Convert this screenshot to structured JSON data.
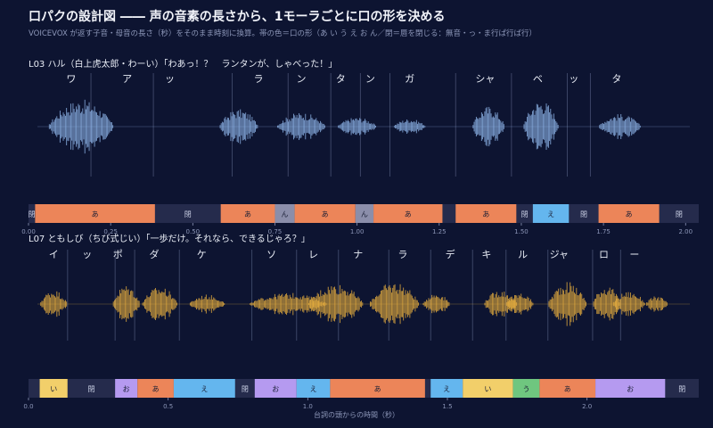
{
  "title": "口パクの設計図 ―― 声の音素の長さから、1モーラごとに口の形を決める",
  "subtitle": "VOICEVOX が返す子音・母音の長さ（秒）をそのまま時刻に換算。帯の色＝口の形（あ い う え お ん／閉＝唇を閉じる：無音・っ・ま行ぱ行ば行）",
  "x_axis_label": "台詞の頭からの時間（秒）",
  "colors": {
    "background": "#0d1431",
    "wave_line1": "#8fb6ea",
    "wave_line2": "#e9b03f",
    "a": "#ec8559",
    "i": "#f2cf6a",
    "u": "#6fc67f",
    "e": "#64b6ee",
    "o": "#b59af0",
    "n": "#8b8eaa",
    "closed": "#252b4c"
  },
  "chart_data": [
    {
      "type": "timeline",
      "label": "L03 ハル（白上虎太郎・わーい）「わあっ！？　ランタンが、しゃべった！」",
      "xlim": [
        0,
        2.04
      ],
      "ticks": [
        0,
        0.25,
        0.5,
        0.75,
        1.0,
        1.25,
        1.5,
        1.75,
        2.0
      ],
      "tick_labels": [
        "0.00",
        "0.25",
        "0.50",
        "0.75",
        "1.00",
        "1.25",
        "1.50",
        "1.75",
        "2.00"
      ],
      "moras": [
        {
          "text": "ワ",
          "t": 0.13,
          "start": 0.0,
          "end": 0.19
        },
        {
          "text": "ア",
          "t": 0.3,
          "start": 0.19,
          "end": 0.38
        },
        {
          "text": "ッ",
          "t": 0.43,
          "start": 0.38,
          "end": 0.62
        },
        {
          "text": "ラ",
          "t": 0.7,
          "start": 0.62,
          "end": 0.79
        },
        {
          "text": "ン",
          "t": 0.83,
          "start": 0.79,
          "end": 0.92
        },
        {
          "text": "タ",
          "t": 0.95,
          "start": 0.92,
          "end": 1.01
        },
        {
          "text": "ン",
          "t": 1.04,
          "start": 1.01,
          "end": 1.1
        },
        {
          "text": "ガ",
          "t": 1.16,
          "start": 1.1,
          "end": 1.3
        },
        {
          "text": "シャ",
          "t": 1.39,
          "start": 1.3,
          "end": 1.47
        },
        {
          "text": "ベ",
          "t": 1.55,
          "start": 1.47,
          "end": 1.64
        },
        {
          "text": "ッ",
          "t": 1.66,
          "start": 1.64,
          "end": 1.71
        },
        {
          "text": "タ",
          "t": 1.79,
          "start": 1.71,
          "end": 2.04
        }
      ],
      "segments": [
        {
          "start": 0.0,
          "end": 0.02,
          "mouth": "閉",
          "key": "closed"
        },
        {
          "start": 0.02,
          "end": 0.385,
          "mouth": "あ",
          "key": "a"
        },
        {
          "start": 0.385,
          "end": 0.585,
          "mouth": "閉",
          "key": "closed"
        },
        {
          "start": 0.585,
          "end": 0.75,
          "mouth": "あ",
          "key": "a"
        },
        {
          "start": 0.75,
          "end": 0.81,
          "mouth": "ん",
          "key": "n"
        },
        {
          "start": 0.81,
          "end": 0.995,
          "mouth": "あ",
          "key": "a"
        },
        {
          "start": 0.995,
          "end": 1.05,
          "mouth": "ん",
          "key": "n"
        },
        {
          "start": 1.05,
          "end": 1.26,
          "mouth": "あ",
          "key": "a"
        },
        {
          "start": 1.26,
          "end": 1.3,
          "mouth": "",
          "key": "closed"
        },
        {
          "start": 1.3,
          "end": 1.485,
          "mouth": "あ",
          "key": "a"
        },
        {
          "start": 1.485,
          "end": 1.535,
          "mouth": "閉",
          "key": "closed"
        },
        {
          "start": 1.535,
          "end": 1.645,
          "mouth": "え",
          "key": "e"
        },
        {
          "start": 1.645,
          "end": 1.735,
          "mouth": "閉",
          "key": "closed"
        },
        {
          "start": 1.735,
          "end": 1.92,
          "mouth": "あ",
          "key": "a"
        },
        {
          "start": 1.92,
          "end": 2.04,
          "mouth": "閉",
          "key": "closed"
        }
      ],
      "bursts": [
        {
          "t": 0.16,
          "w": 0.2,
          "h": 0.85
        },
        {
          "t": 0.64,
          "w": 0.12,
          "h": 0.55
        },
        {
          "t": 0.83,
          "w": 0.15,
          "h": 0.45
        },
        {
          "t": 1.0,
          "w": 0.12,
          "h": 0.3
        },
        {
          "t": 1.16,
          "w": 0.1,
          "h": 0.25
        },
        {
          "t": 1.4,
          "w": 0.1,
          "h": 0.65
        },
        {
          "t": 1.56,
          "w": 0.11,
          "h": 0.85
        },
        {
          "t": 1.8,
          "w": 0.13,
          "h": 0.4
        }
      ]
    },
    {
      "type": "timeline",
      "label": "L07 ともしび（ちび式じい）「一歩だけ。それなら、できるじゃろ？」",
      "xlim": [
        0,
        2.4
      ],
      "ticks": [
        0,
        0.5,
        1.0,
        1.5,
        2.0
      ],
      "tick_labels": [
        "0.0",
        "0.5",
        "1.0",
        "1.5",
        "2.0"
      ],
      "moras": [
        {
          "text": "イ",
          "t": 0.09,
          "start": 0.0,
          "end": 0.14
        },
        {
          "text": "ッ",
          "t": 0.21,
          "start": 0.14,
          "end": 0.31
        },
        {
          "text": "ポ",
          "t": 0.32,
          "start": 0.31,
          "end": 0.38
        },
        {
          "text": "ダ",
          "t": 0.45,
          "start": 0.38,
          "end": 0.54
        },
        {
          "text": "ケ",
          "t": 0.62,
          "start": 0.54,
          "end": 0.8
        },
        {
          "text": "ソ",
          "t": 0.87,
          "start": 0.8,
          "end": 0.96
        },
        {
          "text": "レ",
          "t": 1.02,
          "start": 0.96,
          "end": 1.11
        },
        {
          "text": "ナ",
          "t": 1.18,
          "start": 1.11,
          "end": 1.29
        },
        {
          "text": "ラ",
          "t": 1.34,
          "start": 1.29,
          "end": 1.44
        },
        {
          "text": "デ",
          "t": 1.51,
          "start": 1.44,
          "end": 1.59
        },
        {
          "text": "キ",
          "t": 1.64,
          "start": 1.59,
          "end": 1.71
        },
        {
          "text": "ル",
          "t": 1.77,
          "start": 1.71,
          "end": 1.86
        },
        {
          "text": "ジャ",
          "t": 1.9,
          "start": 1.86,
          "end": 2.02
        },
        {
          "text": "ロ",
          "t": 2.06,
          "start": 2.02,
          "end": 2.12
        },
        {
          "text": "ー",
          "t": 2.17,
          "start": 2.12,
          "end": 2.4
        }
      ],
      "segments": [
        {
          "start": 0.0,
          "end": 0.04,
          "mouth": "",
          "key": "closed"
        },
        {
          "start": 0.04,
          "end": 0.14,
          "mouth": "い",
          "key": "i"
        },
        {
          "start": 0.14,
          "end": 0.31,
          "mouth": "閉",
          "key": "closed"
        },
        {
          "start": 0.31,
          "end": 0.39,
          "mouth": "お",
          "key": "o"
        },
        {
          "start": 0.39,
          "end": 0.52,
          "mouth": "あ",
          "key": "a"
        },
        {
          "start": 0.52,
          "end": 0.74,
          "mouth": "え",
          "key": "e"
        },
        {
          "start": 0.74,
          "end": 0.81,
          "mouth": "閉",
          "key": "closed"
        },
        {
          "start": 0.81,
          "end": 0.96,
          "mouth": "お",
          "key": "o"
        },
        {
          "start": 0.96,
          "end": 1.08,
          "mouth": "え",
          "key": "e"
        },
        {
          "start": 1.08,
          "end": 1.42,
          "mouth": "あ",
          "key": "a"
        },
        {
          "start": 1.42,
          "end": 1.44,
          "mouth": "",
          "key": "closed"
        },
        {
          "start": 1.44,
          "end": 1.555,
          "mouth": "え",
          "key": "e"
        },
        {
          "start": 1.555,
          "end": 1.735,
          "mouth": "い",
          "key": "i"
        },
        {
          "start": 1.735,
          "end": 1.83,
          "mouth": "う",
          "key": "u"
        },
        {
          "start": 1.83,
          "end": 2.03,
          "mouth": "あ",
          "key": "a"
        },
        {
          "start": 2.03,
          "end": 2.28,
          "mouth": "お",
          "key": "o"
        },
        {
          "start": 2.28,
          "end": 2.4,
          "mouth": "閉",
          "key": "closed"
        }
      ],
      "bursts": [
        {
          "t": 0.09,
          "w": 0.1,
          "h": 0.45
        },
        {
          "t": 0.35,
          "w": 0.1,
          "h": 0.6
        },
        {
          "t": 0.47,
          "w": 0.13,
          "h": 0.55
        },
        {
          "t": 0.64,
          "w": 0.13,
          "h": 0.3
        },
        {
          "t": 0.93,
          "w": 0.28,
          "h": 0.35
        },
        {
          "t": 1.1,
          "w": 0.2,
          "h": 0.65
        },
        {
          "t": 1.31,
          "w": 0.18,
          "h": 0.7
        },
        {
          "t": 1.46,
          "w": 0.1,
          "h": 0.35
        },
        {
          "t": 1.69,
          "w": 0.12,
          "h": 0.45
        },
        {
          "t": 1.76,
          "w": 0.1,
          "h": 0.35
        },
        {
          "t": 1.93,
          "w": 0.14,
          "h": 0.7
        },
        {
          "t": 2.07,
          "w": 0.1,
          "h": 0.6
        },
        {
          "t": 2.15,
          "w": 0.12,
          "h": 0.4
        },
        {
          "t": 2.25,
          "w": 0.08,
          "h": 0.25
        }
      ]
    }
  ]
}
